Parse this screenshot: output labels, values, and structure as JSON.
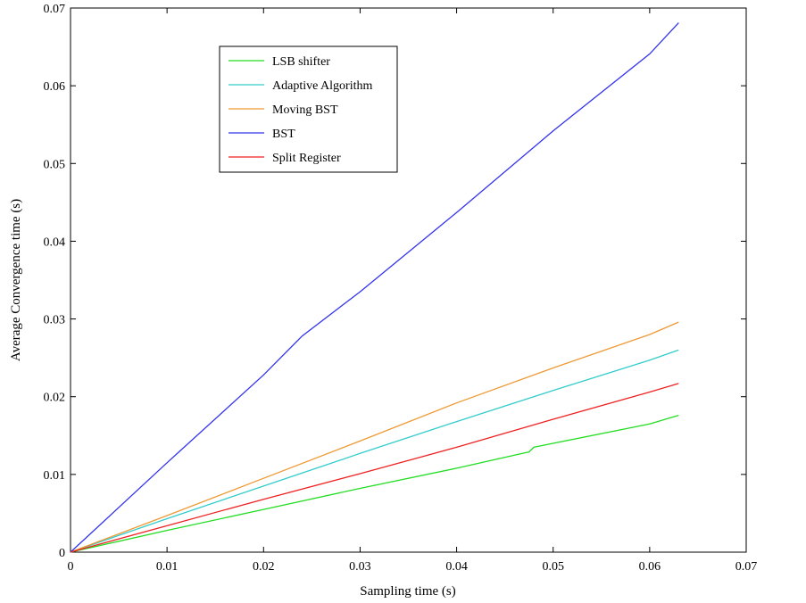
{
  "chart_data": {
    "type": "line",
    "title": "",
    "xlabel": "Sampling time (s)",
    "ylabel": "Average Convergence time (s)",
    "xlim": [
      0,
      0.07
    ],
    "ylim": [
      0,
      0.07
    ],
    "x_ticks": [
      0,
      0.01,
      0.02,
      0.03,
      0.04,
      0.05,
      0.06,
      0.07
    ],
    "y_ticks": [
      0,
      0.01,
      0.02,
      0.03,
      0.04,
      0.05,
      0.06,
      0.07
    ],
    "x_tick_labels": [
      "0",
      "0.01",
      "0.02",
      "0.03",
      "0.04",
      "0.05",
      "0.06",
      "0.07"
    ],
    "y_tick_labels": [
      "0",
      "0.01",
      "0.02",
      "0.03",
      "0.04",
      "0.05",
      "0.06",
      "0.07"
    ],
    "grid": false,
    "legend_position": "top-left",
    "series": [
      {
        "name": "LSB shifter",
        "color": "#22dd22",
        "x": [
          0,
          0.01,
          0.02,
          0.03,
          0.04,
          0.0475,
          0.048,
          0.05,
          0.06,
          0.063
        ],
        "y": [
          0,
          0.0028,
          0.0055,
          0.0082,
          0.0108,
          0.0129,
          0.0135,
          0.014,
          0.0165,
          0.0176
        ]
      },
      {
        "name": "Adaptive Algorithm",
        "color": "#33cccc",
        "x": [
          0,
          0.01,
          0.02,
          0.03,
          0.04,
          0.05,
          0.06,
          0.063
        ],
        "y": [
          0,
          0.0043,
          0.0085,
          0.0127,
          0.0168,
          0.0208,
          0.0247,
          0.026
        ]
      },
      {
        "name": "Moving BST",
        "color": "#ee9933",
        "x": [
          0,
          0.01,
          0.02,
          0.03,
          0.04,
          0.05,
          0.06,
          0.063
        ],
        "y": [
          0,
          0.0047,
          0.0095,
          0.0143,
          0.0192,
          0.0237,
          0.028,
          0.0296
        ]
      },
      {
        "name": "BST",
        "color": "#3333ee",
        "x": [
          0,
          0.01,
          0.02,
          0.024,
          0.03,
          0.04,
          0.05,
          0.06,
          0.063
        ],
        "y": [
          0,
          0.0115,
          0.0228,
          0.0278,
          0.0335,
          0.0437,
          0.0542,
          0.0641,
          0.0681
        ]
      },
      {
        "name": "Split Register",
        "color": "#ee2222",
        "x": [
          0,
          0.01,
          0.02,
          0.03,
          0.04,
          0.05,
          0.06,
          0.063
        ],
        "y": [
          0,
          0.0034,
          0.0068,
          0.0101,
          0.0135,
          0.0171,
          0.0206,
          0.0217
        ]
      }
    ]
  }
}
